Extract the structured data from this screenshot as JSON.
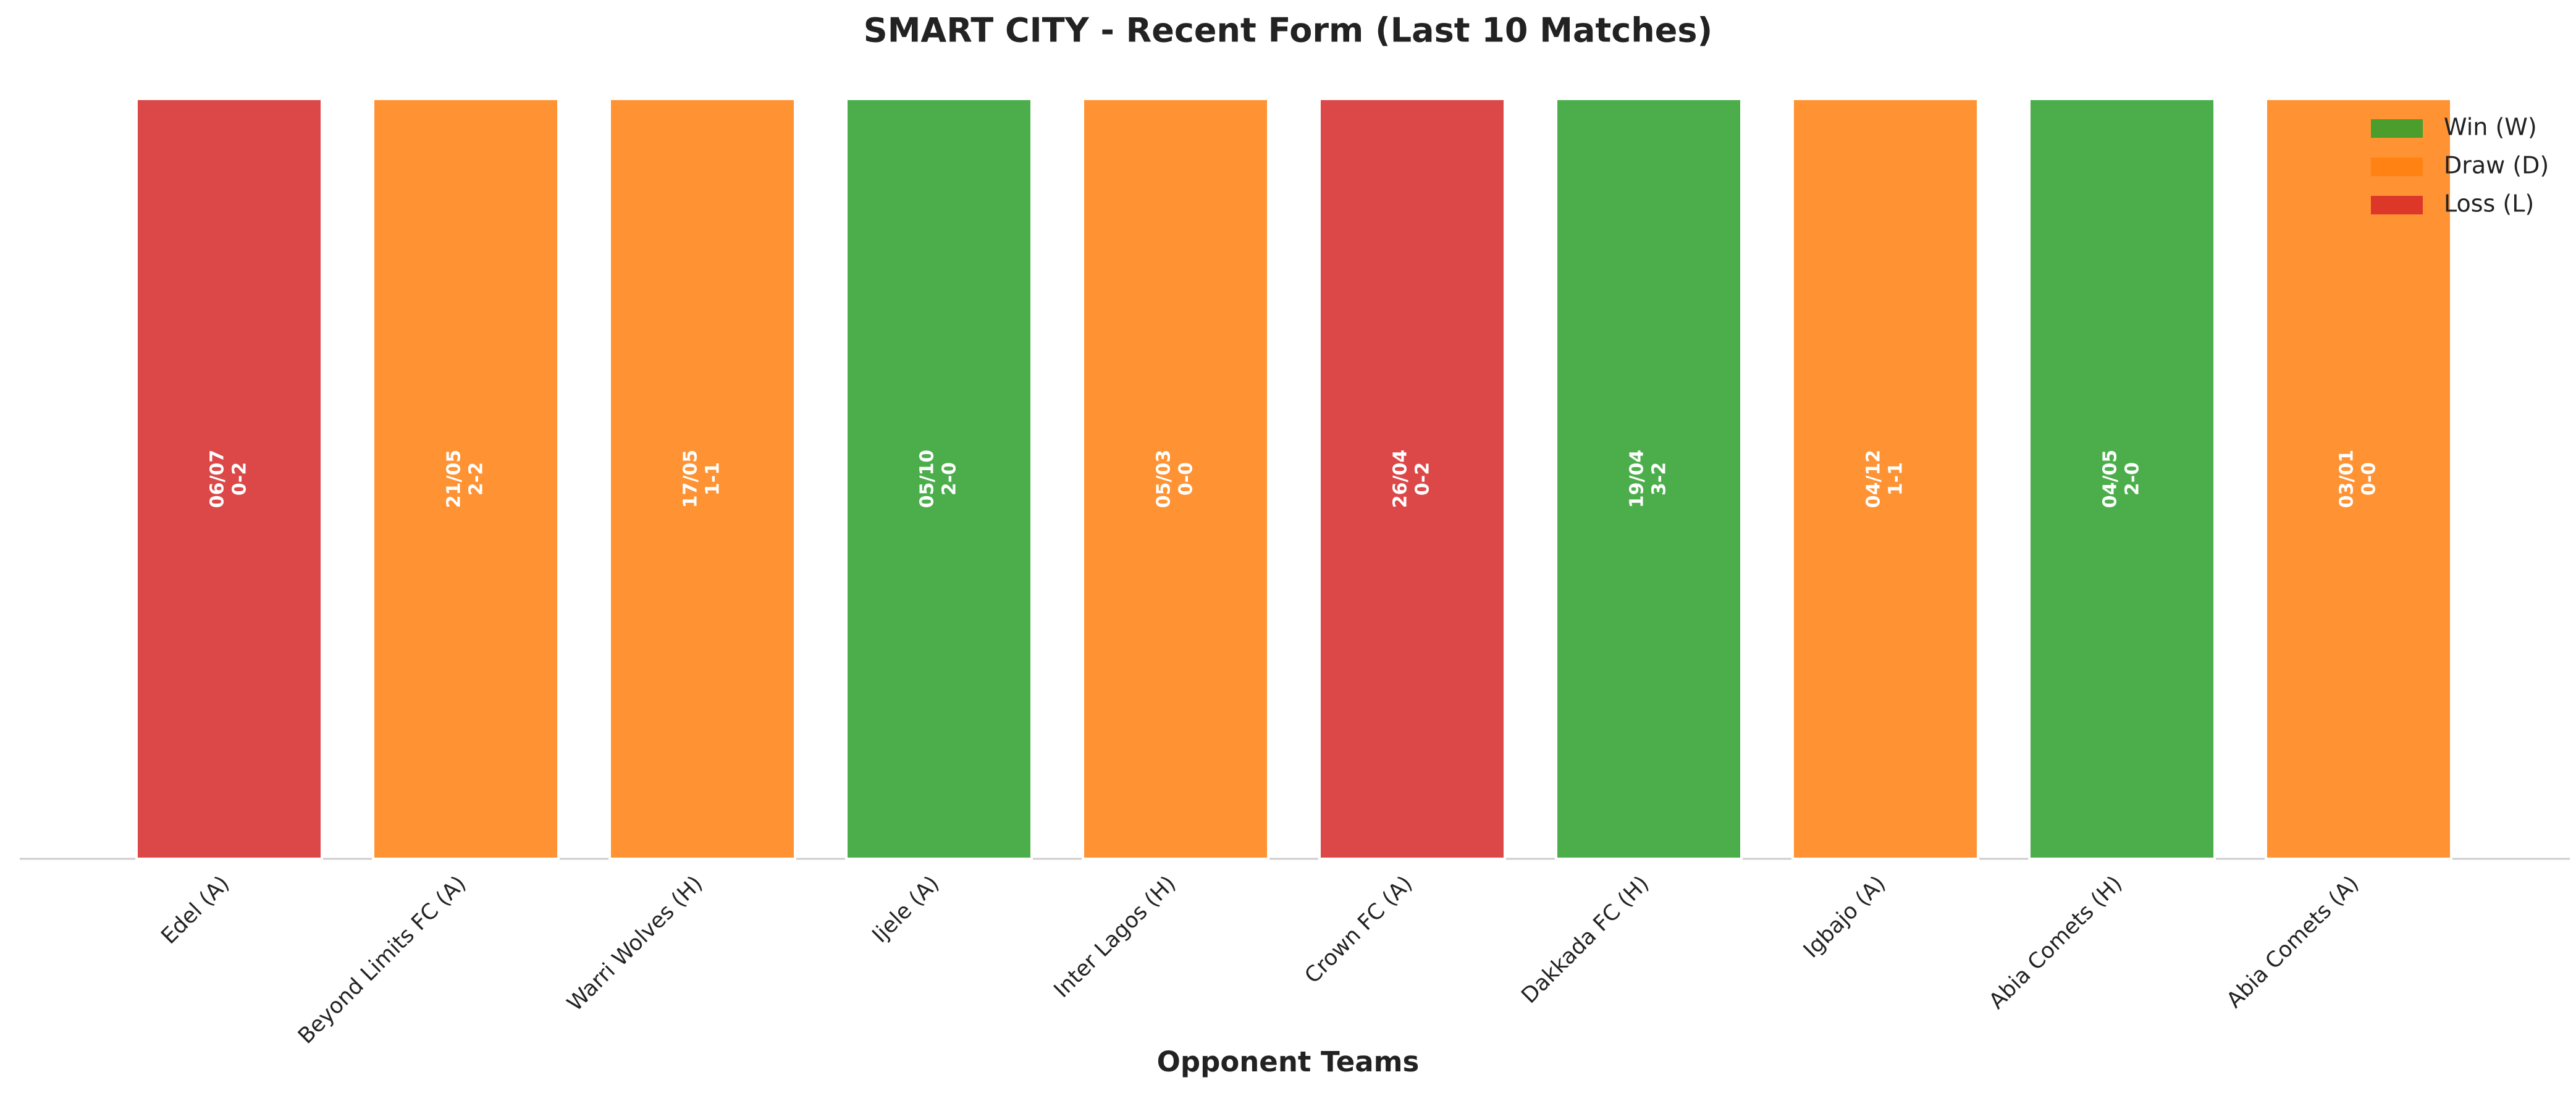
{
  "chart_data": {
    "type": "bar",
    "title": "SMART CITY - Recent Form (Last 10 Matches)",
    "x_label": "Opponent Teams",
    "categories": [
      "Edel (A)",
      "Beyond Limits FC (A)",
      "Warri Wolves (H)",
      "Ijele (A)",
      "Inter Lagos (H)",
      "Crown FC (A)",
      "Dakkada FC (H)",
      "Igbajo (A)",
      "Abia Comets (H)",
      "Abia Comets (A)"
    ],
    "values": [
      1,
      1,
      1,
      1,
      1,
      1,
      1,
      1,
      1,
      1
    ],
    "dates": [
      "06/07",
      "21/05",
      "17/05",
      "05/10",
      "05/03",
      "26/04",
      "19/04",
      "04/12",
      "04/05",
      "03/01"
    ],
    "scores": [
      "0-2",
      "2-2",
      "1-1",
      "2-0",
      "0-0",
      "0-2",
      "3-2",
      "1-1",
      "2-0",
      "0-0"
    ],
    "colors": [
      "#d62728",
      "#ff7f0e",
      "#ff7f0e",
      "#2ca02c",
      "#ff7f0e",
      "#d62728",
      "#2ca02c",
      "#ff7f0e",
      "#2ca02c",
      "#ff7f0e"
    ],
    "ylim": [
      0,
      1
    ],
    "legend": [
      {
        "name": "Win (W)",
        "color": "#2ca02c"
      },
      {
        "name": "Draw (D)",
        "color": "#ff7f0e"
      },
      {
        "name": "Loss (L)",
        "color": "#d62728"
      }
    ],
    "legend_position": "upper right"
  }
}
